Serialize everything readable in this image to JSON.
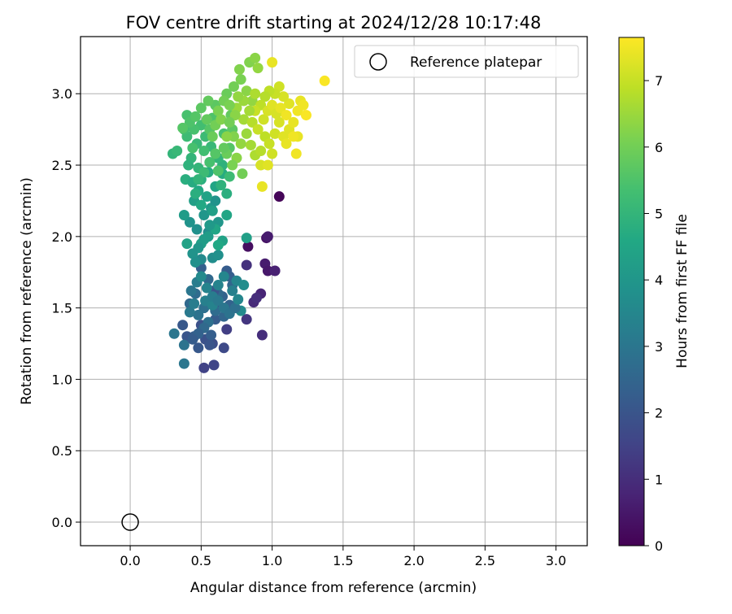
{
  "chart_data": {
    "type": "scatter",
    "title": "FOV centre drift starting at 2024/12/28 10:17:48",
    "xlabel": "Angular distance from reference (arcmin)",
    "ylabel": "Rotation from reference (arcmin)",
    "xlim": [
      -0.35,
      3.22
    ],
    "ylim": [
      -0.165,
      3.4
    ],
    "xticks": [
      0.0,
      0.5,
      1.0,
      1.5,
      2.0,
      2.5,
      3.0
    ],
    "yticks": [
      0.0,
      0.5,
      1.0,
      1.5,
      2.0,
      2.5,
      3.0
    ],
    "xtick_labels": [
      "0.0",
      "0.5",
      "1.0",
      "1.5",
      "2.0",
      "2.5",
      "3.0"
    ],
    "ytick_labels": [
      "0.0",
      "0.5",
      "1.0",
      "1.5",
      "2.0",
      "2.5",
      "3.0"
    ],
    "grid": true,
    "legend": {
      "placement": "top-right",
      "entries": [
        {
          "label": "Reference platepar",
          "marker": "open-circle",
          "color": "#000000"
        }
      ]
    },
    "reference_point": {
      "x": 0.0,
      "y": 0.0
    },
    "colorbar": {
      "label": "Hours from first FF file",
      "range": [
        0,
        7.65
      ],
      "ticks": [
        0,
        1,
        2,
        3,
        4,
        5,
        6,
        7
      ],
      "tick_labels": [
        "0",
        "1",
        "2",
        "3",
        "4",
        "5",
        "6",
        "7"
      ],
      "colormap": "viridis"
    },
    "series": [
      {
        "points": [
          [
            1.05,
            2.28,
            0.1
          ],
          [
            0.83,
            1.93,
            0.3
          ],
          [
            0.96,
            1.99,
            0.4
          ],
          [
            0.95,
            1.81,
            0.6
          ],
          [
            0.97,
            1.76,
            0.5
          ],
          [
            1.02,
            1.76,
            0.7
          ],
          [
            0.92,
            1.6,
            0.8
          ],
          [
            0.87,
            1.54,
            0.9
          ],
          [
            0.89,
            1.57,
            1.0
          ],
          [
            0.82,
            1.8,
            1.1
          ],
          [
            0.93,
            1.31,
            1.0
          ],
          [
            0.82,
            1.42,
            1.2
          ],
          [
            0.97,
            2.0,
            0.6
          ],
          [
            0.68,
            1.35,
            1.4
          ],
          [
            0.73,
            1.51,
            1.3
          ],
          [
            0.52,
            1.08,
            1.5
          ],
          [
            0.59,
            1.1,
            1.6
          ],
          [
            0.66,
            1.22,
            1.7
          ],
          [
            0.58,
            1.25,
            1.8
          ],
          [
            0.53,
            1.28,
            1.9
          ],
          [
            0.63,
            1.51,
            1.2
          ],
          [
            0.5,
            1.38,
            1.9
          ],
          [
            0.4,
            1.3,
            2.0
          ],
          [
            0.37,
            1.38,
            2.1
          ],
          [
            0.45,
            1.3,
            2.2
          ],
          [
            0.48,
            1.22,
            2.1
          ],
          [
            0.57,
            1.31,
            2.3
          ],
          [
            0.6,
            1.42,
            2.2
          ],
          [
            0.65,
            1.58,
            2.4
          ],
          [
            0.7,
            1.72,
            2.3
          ],
          [
            0.68,
            1.76,
            2.2
          ],
          [
            0.72,
            1.66,
            2.5
          ],
          [
            0.42,
            1.53,
            2.6
          ],
          [
            0.46,
            1.6,
            2.7
          ],
          [
            0.52,
            1.5,
            2.8
          ],
          [
            0.48,
            1.45,
            2.9
          ],
          [
            0.55,
            1.4,
            2.8
          ],
          [
            0.6,
            1.48,
            2.7
          ],
          [
            0.62,
            1.6,
            2.6
          ],
          [
            0.66,
            1.44,
            2.5
          ],
          [
            0.7,
            1.52,
            2.4
          ],
          [
            0.59,
            1.62,
            2.0
          ],
          [
            0.5,
            1.78,
            2.3
          ],
          [
            0.55,
            1.7,
            2.6
          ],
          [
            0.38,
            1.11,
            3.0
          ],
          [
            0.38,
            1.24,
            2.9
          ],
          [
            0.31,
            1.32,
            3.0
          ],
          [
            0.42,
            1.47,
            3.1
          ],
          [
            0.43,
            1.62,
            3.0
          ],
          [
            0.47,
            1.68,
            3.2
          ],
          [
            0.45,
            1.53,
            3.2
          ],
          [
            0.53,
            1.55,
            3.3
          ],
          [
            0.58,
            1.52,
            3.4
          ],
          [
            0.62,
            1.66,
            3.4
          ],
          [
            0.66,
            1.72,
            3.5
          ],
          [
            0.75,
            1.69,
            3.5
          ],
          [
            0.78,
            1.48,
            3.6
          ],
          [
            0.5,
            1.84,
            3.6
          ],
          [
            0.58,
            1.85,
            3.7
          ],
          [
            0.62,
            1.87,
            3.8
          ],
          [
            0.55,
            2.03,
            3.7
          ],
          [
            0.47,
            2.05,
            3.8
          ],
          [
            0.42,
            2.1,
            3.9
          ],
          [
            0.52,
            2.15,
            4.0
          ],
          [
            0.57,
            2.2,
            4.1
          ],
          [
            0.6,
            2.25,
            3.9
          ],
          [
            0.62,
            2.1,
            4.0
          ],
          [
            0.55,
            2.0,
            4.2
          ],
          [
            0.5,
            1.95,
            4.3
          ],
          [
            0.4,
            1.95,
            4.4
          ],
          [
            0.38,
            2.15,
            4.2
          ],
          [
            0.6,
            2.05,
            4.5
          ],
          [
            0.65,
            1.97,
            4.4
          ],
          [
            0.45,
            2.25,
            4.3
          ],
          [
            0.62,
            1.94,
            4.6
          ],
          [
            0.68,
            2.15,
            4.5
          ],
          [
            0.48,
            2.32,
            4.6
          ],
          [
            0.5,
            2.4,
            4.8
          ],
          [
            0.55,
            2.45,
            4.7
          ],
          [
            0.6,
            2.35,
            4.5
          ],
          [
            0.65,
            2.44,
            4.7
          ],
          [
            0.68,
            2.3,
            4.8
          ],
          [
            0.65,
            2.5,
            4.9
          ],
          [
            0.62,
            2.55,
            5.0
          ],
          [
            0.57,
            2.63,
            5.1
          ],
          [
            0.53,
            2.7,
            5.2
          ],
          [
            0.5,
            2.78,
            5.3
          ],
          [
            0.45,
            2.75,
            5.4
          ],
          [
            0.4,
            2.7,
            5.2
          ],
          [
            0.38,
            2.75,
            5.3
          ],
          [
            0.4,
            2.85,
            5.4
          ],
          [
            0.42,
            2.8,
            5.5
          ],
          [
            0.47,
            2.65,
            5.1
          ],
          [
            0.43,
            2.55,
            5.0
          ],
          [
            0.41,
            2.5,
            4.9
          ],
          [
            0.39,
            2.4,
            4.8
          ],
          [
            0.44,
            2.38,
            4.7
          ],
          [
            0.48,
            2.48,
            5.0
          ],
          [
            0.52,
            2.6,
            5.3
          ],
          [
            0.56,
            2.75,
            5.6
          ],
          [
            0.58,
            2.83,
            5.5
          ],
          [
            0.6,
            2.92,
            5.7
          ],
          [
            0.55,
            2.95,
            5.8
          ],
          [
            0.66,
            2.72,
            5.4
          ],
          [
            0.7,
            2.62,
            5.6
          ],
          [
            0.72,
            2.75,
            5.7
          ],
          [
            0.71,
            2.85,
            5.8
          ],
          [
            0.68,
            3.0,
            5.9
          ],
          [
            0.73,
            3.05,
            6.0
          ],
          [
            0.78,
            3.1,
            6.1
          ],
          [
            0.84,
            3.22,
            6.2
          ],
          [
            0.88,
            3.25,
            6.3
          ],
          [
            0.9,
            3.18,
            6.4
          ],
          [
            0.77,
            3.17,
            6.2
          ],
          [
            0.82,
            3.02,
            6.3
          ],
          [
            0.86,
            2.95,
            6.4
          ],
          [
            0.75,
            2.9,
            6.5
          ],
          [
            0.8,
            2.82,
            6.6
          ],
          [
            0.73,
            2.7,
            6.2
          ],
          [
            0.78,
            2.65,
            6.4
          ],
          [
            0.82,
            2.72,
            6.5
          ],
          [
            0.85,
            2.64,
            6.6
          ],
          [
            0.88,
            2.57,
            6.7
          ],
          [
            0.75,
            2.55,
            6.3
          ],
          [
            0.72,
            2.5,
            6.1
          ],
          [
            0.68,
            2.58,
            5.9
          ],
          [
            0.79,
            2.44,
            6.0
          ],
          [
            0.62,
            2.46,
            5.5
          ],
          [
            0.3,
            2.58,
            5.0
          ],
          [
            0.33,
            2.6,
            5.1
          ],
          [
            0.37,
            2.76,
            5.6
          ],
          [
            0.44,
            2.62,
            5.4
          ],
          [
            0.46,
            2.84,
            5.6
          ],
          [
            0.5,
            2.9,
            5.7
          ],
          [
            0.54,
            2.82,
            5.8
          ],
          [
            0.58,
            2.7,
            5.9
          ],
          [
            0.6,
            2.78,
            6.0
          ],
          [
            0.62,
            2.88,
            6.1
          ],
          [
            0.66,
            2.95,
            6.0
          ],
          [
            0.7,
            2.92,
            6.1
          ],
          [
            0.64,
            2.82,
            6.2
          ],
          [
            0.68,
            2.7,
            6.3
          ],
          [
            0.92,
            2.6,
            6.8
          ],
          [
            0.95,
            2.7,
            6.9
          ],
          [
            0.98,
            2.65,
            7.0
          ],
          [
            1.0,
            2.58,
            7.1
          ],
          [
            0.92,
            2.5,
            7.2
          ],
          [
            0.97,
            2.5,
            7.3
          ],
          [
            1.02,
            2.72,
            7.1
          ],
          [
            1.05,
            2.8,
            7.2
          ],
          [
            1.08,
            2.7,
            7.3
          ],
          [
            1.1,
            2.65,
            7.4
          ],
          [
            1.12,
            2.75,
            7.3
          ],
          [
            1.15,
            2.8,
            7.4
          ],
          [
            1.18,
            2.88,
            7.5
          ],
          [
            1.2,
            2.95,
            7.4
          ],
          [
            1.22,
            2.92,
            7.5
          ],
          [
            1.24,
            2.85,
            7.6
          ],
          [
            1.18,
            2.7,
            7.4
          ],
          [
            1.17,
            2.58,
            7.5
          ],
          [
            1.12,
            2.93,
            7.3
          ],
          [
            1.08,
            2.98,
            7.2
          ],
          [
            1.05,
            3.05,
            7.1
          ],
          [
            1.02,
            3.0,
            7.0
          ],
          [
            0.98,
            3.02,
            6.9
          ],
          [
            0.95,
            2.98,
            6.8
          ],
          [
            0.92,
            2.92,
            6.9
          ],
          [
            0.88,
            2.88,
            7.0
          ],
          [
            0.86,
            2.8,
            6.8
          ],
          [
            0.9,
            2.75,
            7.0
          ],
          [
            0.94,
            2.82,
            7.1
          ],
          [
            0.97,
            2.88,
            7.2
          ],
          [
            1.0,
            2.92,
            7.3
          ],
          [
            1.03,
            2.86,
            7.2
          ],
          [
            1.06,
            2.9,
            7.4
          ],
          [
            1.1,
            2.85,
            7.5
          ],
          [
            1.15,
            2.7,
            7.5
          ],
          [
            1.0,
            3.22,
            7.4
          ],
          [
            0.93,
            2.35,
            7.4
          ],
          [
            1.37,
            3.09,
            7.6
          ],
          [
            0.88,
            3.0,
            6.7
          ],
          [
            0.84,
            2.88,
            6.6
          ],
          [
            0.8,
            2.95,
            6.5
          ],
          [
            0.76,
            2.98,
            6.4
          ],
          [
            0.74,
            2.85,
            6.3
          ],
          [
            0.7,
            2.8,
            6.0
          ],
          [
            0.66,
            2.62,
            5.8
          ],
          [
            0.6,
            2.58,
            5.6
          ],
          [
            0.56,
            2.52,
            5.4
          ],
          [
            0.52,
            2.45,
            5.2
          ],
          [
            0.48,
            2.4,
            5.0
          ],
          [
            0.46,
            2.3,
            4.8
          ],
          [
            0.5,
            2.22,
            4.6
          ],
          [
            0.54,
            2.28,
            4.4
          ],
          [
            0.58,
            2.18,
            4.3
          ],
          [
            0.56,
            2.08,
            4.1
          ],
          [
            0.52,
            1.98,
            4.2
          ],
          [
            0.48,
            1.92,
            4.0
          ],
          [
            0.44,
            1.88,
            3.9
          ],
          [
            0.46,
            1.82,
            3.8
          ],
          [
            0.5,
            1.72,
            3.6
          ],
          [
            0.54,
            1.64,
            3.4
          ],
          [
            0.58,
            1.58,
            3.2
          ],
          [
            0.62,
            1.55,
            3.1
          ],
          [
            0.66,
            1.5,
            3.0
          ],
          [
            0.7,
            1.46,
            2.9
          ],
          [
            0.74,
            1.5,
            2.8
          ],
          [
            0.52,
            1.36,
            2.6
          ],
          [
            0.48,
            1.32,
            2.4
          ],
          [
            0.44,
            1.28,
            2.2
          ],
          [
            0.56,
            1.24,
            2.0
          ],
          [
            0.72,
            1.62,
            3.3
          ],
          [
            0.76,
            1.56,
            3.5
          ],
          [
            0.8,
            1.66,
            3.7
          ],
          [
            0.82,
            1.99,
            4.3
          ],
          [
            0.64,
            2.36,
            4.9
          ],
          [
            0.7,
            2.42,
            5.2
          ]
        ]
      }
    ]
  }
}
